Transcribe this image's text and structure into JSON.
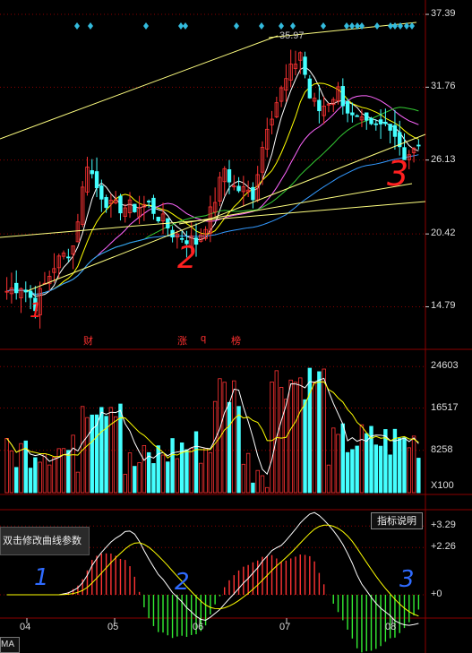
{
  "colors": {
    "up": "#ff3333",
    "down": "#44ffff",
    "trend": "#ffff80",
    "ma5": "#ffffff",
    "ma10": "#ffff00",
    "ma20": "#ff66ff",
    "ma30": "#33cc33",
    "ma60": "#3399ff",
    "grid": "#8b0000"
  },
  "chart_data": [
    {
      "type": "candlestick",
      "panel": "price",
      "ylim": [
        11.5,
        38.5
      ],
      "y_ticks": [
        "37.39",
        "31.76",
        "26.13",
        "20.42",
        "14.79"
      ],
      "y_values": [
        37.39,
        31.76,
        26.13,
        20.42,
        14.79
      ],
      "peak_label": "35.97",
      "x_labels": [
        "04",
        "05",
        "06",
        "07",
        "08"
      ],
      "events": [
        {
          "text": "财",
          "x": 0.23
        },
        {
          "text": "涨",
          "x": 0.45
        },
        {
          "text": "q",
          "x": 0.5
        },
        {
          "text": "榜",
          "x": 0.57
        }
      ],
      "handwritten_marks": [
        "1",
        "2",
        "3"
      ]
    },
    {
      "type": "bar",
      "panel": "volume",
      "y_ticks": [
        "24603",
        "16517",
        "8258"
      ],
      "y_values": [
        24603,
        16517,
        8258
      ],
      "unit": "X100"
    },
    {
      "type": "macd",
      "panel": "indicator",
      "y_ticks": [
        "+3.29",
        "+2.26",
        "+0"
      ],
      "y_values": [
        3.29,
        2.26,
        0
      ],
      "button": "指标说明",
      "tooltip": "双击修改曲线参数",
      "tab": "MA"
    }
  ]
}
